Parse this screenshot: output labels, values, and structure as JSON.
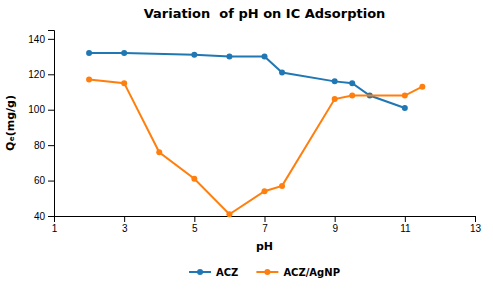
{
  "chart_data": {
    "type": "line",
    "title": "Variation  of pH on IC Adsorption",
    "x_label": "pH",
    "y_label": "Qₑ(mg/g)",
    "xlim": [
      1,
      13
    ],
    "ylim": [
      40,
      145
    ],
    "xticks": [
      1,
      3,
      5,
      7,
      9,
      11,
      13
    ],
    "yticks": [
      40,
      60,
      80,
      100,
      120,
      140
    ],
    "series": [
      {
        "name": "ACZ",
        "x": [
          2,
          3,
          5,
          6,
          7,
          7.5,
          9,
          9.5,
          10,
          11
        ],
        "values": [
          132,
          132,
          131,
          130,
          130,
          121,
          116,
          115,
          108,
          101
        ]
      },
      {
        "name": "ACZ/AgNP",
        "x": [
          2,
          3,
          4,
          5,
          6,
          7,
          7.5,
          9,
          9.5,
          11,
          11.5
        ],
        "values": [
          117,
          115,
          76,
          61,
          41,
          54,
          57,
          106,
          108,
          108,
          113
        ]
      }
    ],
    "marker": "circle",
    "grid": false,
    "legend": "bottom"
  }
}
